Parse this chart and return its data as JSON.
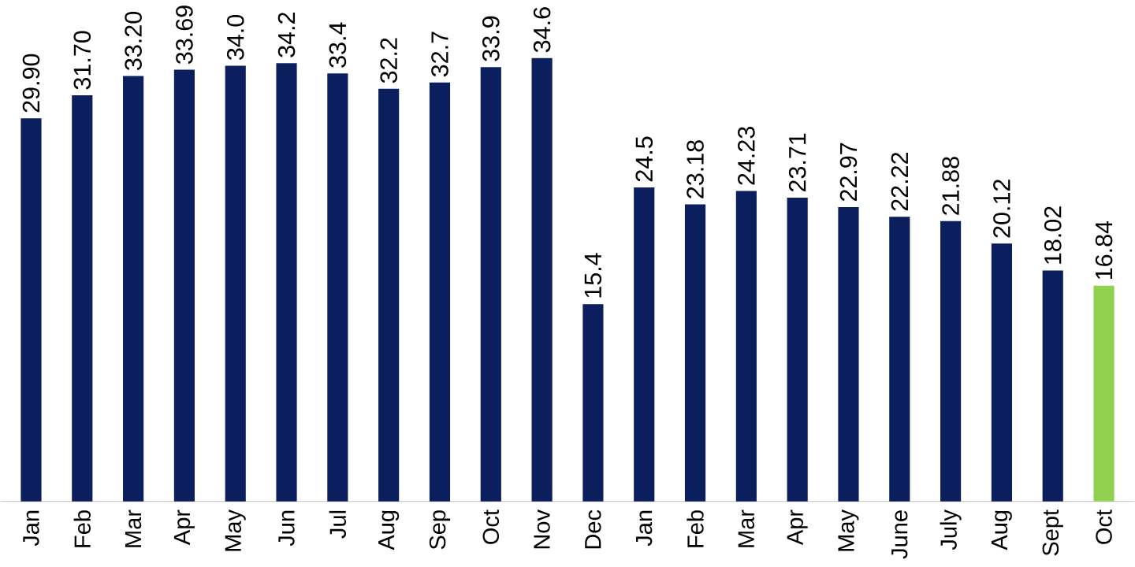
{
  "chart_data": {
    "type": "bar",
    "categories": [
      "Jan",
      "Feb",
      "Mar",
      "Apr",
      "May",
      "Jun",
      "Jul",
      "Aug",
      "Sep",
      "Oct",
      "Nov",
      "Dec",
      "Jan",
      "Feb",
      "Mar",
      "Apr",
      "May",
      "June",
      "July",
      "Aug",
      "Sept",
      "Oct"
    ],
    "values": [
      29.9,
      31.7,
      33.2,
      33.69,
      34.0,
      34.2,
      33.4,
      32.2,
      32.7,
      33.9,
      34.6,
      15.4,
      24.5,
      23.18,
      24.23,
      23.71,
      22.97,
      22.22,
      21.88,
      20.12,
      18.02,
      16.84
    ],
    "value_labels": [
      "29.90",
      "31.70",
      "33.20",
      "33.69",
      "34.0",
      "34.2",
      "33.4",
      "32.2",
      "32.7",
      "33.9",
      "34.6",
      "15.4",
      "24.5",
      "23.18",
      "24.23",
      "23.71",
      "22.97",
      "22.22",
      "21.88",
      "20.12",
      "18.02",
      "16.84"
    ],
    "colors": [
      "#0b1f5e",
      "#0b1f5e",
      "#0b1f5e",
      "#0b1f5e",
      "#0b1f5e",
      "#0b1f5e",
      "#0b1f5e",
      "#0b1f5e",
      "#0b1f5e",
      "#0b1f5e",
      "#0b1f5e",
      "#0b1f5e",
      "#0b1f5e",
      "#0b1f5e",
      "#0b1f5e",
      "#0b1f5e",
      "#0b1f5e",
      "#0b1f5e",
      "#0b1f5e",
      "#0b1f5e",
      "#0b1f5e",
      "#92d050"
    ]
  }
}
